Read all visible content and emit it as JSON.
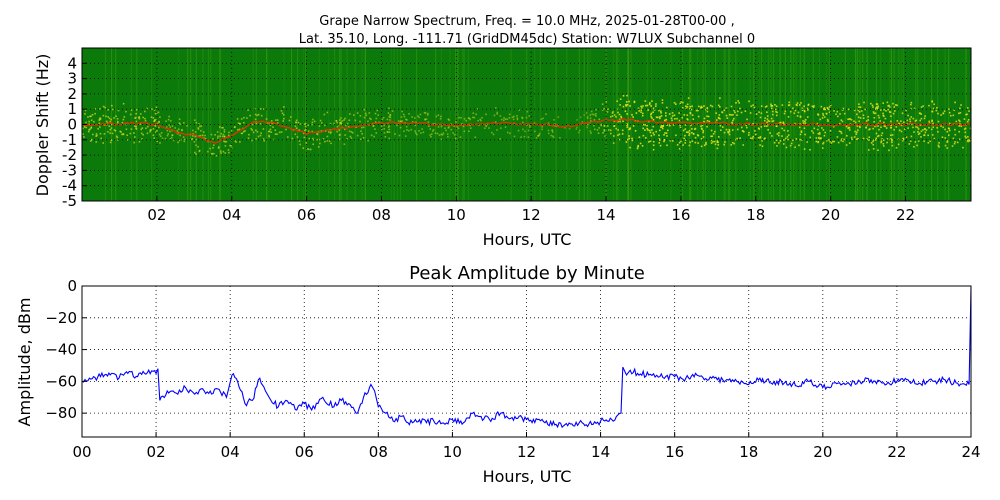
{
  "figure": {
    "title_line1": "Grape Narrow Spectrum, Freq. = 10.0 MHz, 2025-01-28T00-00 ,",
    "title_line2": "Lat.  35.10, Long. -111.71 (GridDM45dc) Station: W7LUX Subchannel 0"
  },
  "chart_data": [
    {
      "type": "heatmap",
      "xlabel": "Hours, UTC",
      "ylabel": "Doppler Shift (Hz)",
      "xlim": [
        0,
        23.75
      ],
      "ylim": [
        -5,
        5
      ],
      "x_ticks": [
        2,
        4,
        6,
        8,
        10,
        12,
        14,
        16,
        18,
        20,
        22
      ],
      "x_tick_labels": [
        "02",
        "04",
        "06",
        "08",
        "10",
        "12",
        "14",
        "16",
        "18",
        "20",
        "22"
      ],
      "y_ticks": [
        4,
        3,
        2,
        1,
        0,
        -1,
        -2,
        -3,
        -4,
        -5
      ],
      "y_tick_labels": [
        "4",
        "3",
        "2",
        "1",
        "0",
        "-1",
        "-2",
        "-3",
        "-4",
        "-5"
      ],
      "grid": true,
      "colors": {
        "background": "#0b7a0b",
        "low": "#3f9f10",
        "mid": "#e6e61a",
        "high": "#ff2a00"
      },
      "doppler_trace": {
        "hours": [
          0,
          1,
          1.5,
          2,
          2.5,
          3,
          3.5,
          4,
          4.5,
          5,
          6,
          7,
          8,
          9,
          10,
          11,
          12,
          13,
          14,
          14.5,
          15,
          16,
          17,
          18,
          19,
          20,
          21,
          22,
          23,
          23.75
        ],
        "hz": [
          0,
          0.05,
          0.1,
          0,
          -0.5,
          -0.7,
          -1.2,
          -0.8,
          0.1,
          0.2,
          -0.6,
          -0.2,
          0.1,
          0.1,
          -0.1,
          0.1,
          0,
          -0.1,
          0.3,
          0.3,
          0.2,
          0.1,
          0.1,
          0,
          0,
          -0.05,
          0,
          0,
          0,
          0
        ]
      },
      "signal_strength": {
        "hours": [
          0,
          2,
          2.1,
          5,
          8.8,
          10,
          12,
          13.4,
          14.5,
          16,
          20,
          22,
          23.75
        ],
        "level": [
          0.55,
          0.5,
          0.3,
          0.5,
          0.25,
          0.25,
          0.2,
          0.05,
          0.95,
          0.85,
          0.8,
          0.8,
          0.8
        ]
      }
    },
    {
      "type": "line",
      "title": "Peak Amplitude by Minute",
      "xlabel": "Hours, UTC",
      "ylabel": "Amplitude, dBm",
      "xlim": [
        0,
        24
      ],
      "ylim": [
        -95,
        0
      ],
      "x_ticks": [
        0,
        2,
        4,
        6,
        8,
        10,
        12,
        14,
        16,
        18,
        20,
        22,
        24
      ],
      "x_tick_labels": [
        "00",
        "02",
        "04",
        "06",
        "08",
        "10",
        "12",
        "14",
        "16",
        "18",
        "20",
        "22",
        "24"
      ],
      "y_ticks": [
        0,
        -20,
        -40,
        -60,
        -80
      ],
      "y_tick_labels": [
        "0",
        "−20",
        "−40",
        "−60",
        "−80"
      ],
      "grid": true,
      "series": [
        {
          "color": "#0000ff",
          "x": [
            0,
            0.2,
            0.5,
            0.8,
            1,
            1.2,
            1.5,
            1.8,
            2,
            2.05,
            2.1,
            2.3,
            2.5,
            2.8,
            3,
            3.3,
            3.5,
            3.7,
            3.9,
            4.05,
            4.2,
            4.4,
            4.6,
            4.8,
            4.95,
            5.1,
            5.3,
            5.5,
            5.8,
            6,
            6.2,
            6.5,
            6.8,
            7,
            7.2,
            7.4,
            7.6,
            7.8,
            7.9,
            8,
            8.2,
            8.4,
            8.6,
            8.8,
            9,
            9.3,
            9.5,
            9.8,
            10,
            10.3,
            10.5,
            10.7,
            11,
            11.3,
            11.5,
            11.8,
            12,
            12.3,
            12.5,
            12.8,
            13,
            13.3,
            13.5,
            13.8,
            14,
            14.3,
            14.55,
            14.6,
            14.7,
            14.8,
            15,
            15.3,
            15.6,
            16,
            16.3,
            16.6,
            17,
            17.3,
            17.6,
            18,
            18.3,
            18.6,
            19,
            19.3,
            19.6,
            20,
            20.3,
            20.6,
            21,
            21.3,
            21.6,
            22,
            22.3,
            22.6,
            23,
            23.3,
            23.6,
            23.95,
            24
          ],
          "y": [
            -60,
            -58,
            -57,
            -55,
            -58,
            -54,
            -57,
            -53,
            -55,
            -52,
            -72,
            -66,
            -67,
            -64,
            -67,
            -66,
            -68,
            -65,
            -70,
            -56,
            -60,
            -74,
            -72,
            -58,
            -66,
            -72,
            -76,
            -72,
            -78,
            -74,
            -78,
            -70,
            -76,
            -72,
            -74,
            -80,
            -70,
            -62,
            -66,
            -76,
            -80,
            -85,
            -82,
            -86,
            -84,
            -86,
            -85,
            -87,
            -84,
            -86,
            -80,
            -82,
            -84,
            -80,
            -83,
            -82,
            -84,
            -84,
            -86,
            -87,
            -88,
            -88,
            -86,
            -87,
            -85,
            -84,
            -80,
            -51,
            -56,
            -53,
            -55,
            -56,
            -57,
            -57,
            -58,
            -56,
            -58,
            -59,
            -60,
            -62,
            -58,
            -61,
            -60,
            -63,
            -60,
            -64,
            -61,
            -62,
            -60,
            -59,
            -61,
            -60,
            -59,
            -61,
            -60,
            -59,
            -61,
            -62,
            -1
          ]
        }
      ]
    }
  ]
}
